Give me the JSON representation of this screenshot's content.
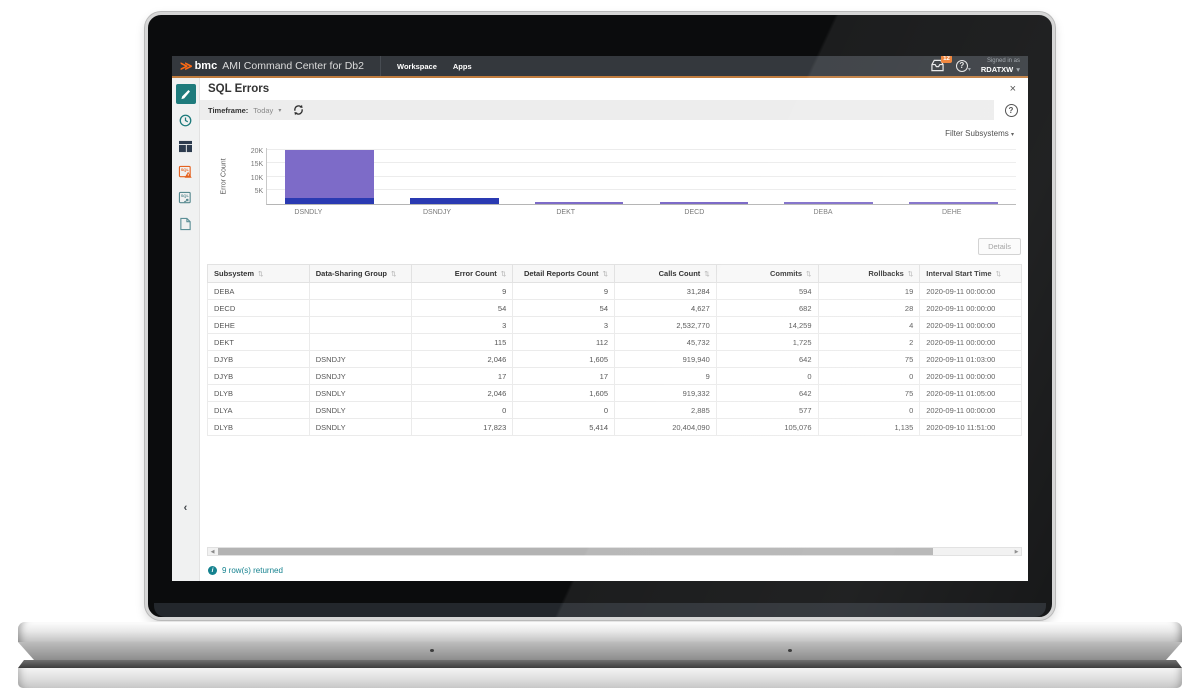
{
  "header": {
    "brand": "bmc",
    "app_title": "AMI Command Center for Db2",
    "nav": [
      "Workspace",
      "Apps"
    ],
    "notification_count": "12",
    "help_glyph": "?",
    "signed_in_label": "Signed in as",
    "username": "RDATXW"
  },
  "page": {
    "title": "SQL Errors",
    "close_glyph": "×",
    "timeframe_label": "Timeframe:",
    "timeframe_value": "Today",
    "filter_label": "Filter Subsystems",
    "details_button": "Details",
    "status_text": "9 row(s) returned",
    "help_glyph": "?"
  },
  "sidebar": {
    "icons": [
      "dashboard-pen-icon",
      "history-clock-icon",
      "workspace-columns-icon",
      "sql-errors-warning-icon",
      "sql-activity-icon",
      "report-document-icon"
    ],
    "collapse_glyph": "‹"
  },
  "chart_data": {
    "type": "bar",
    "stacked": true,
    "title": "",
    "xlabel": "",
    "ylabel": "Error Count",
    "ylim": [
      0,
      21000
    ],
    "grid": true,
    "legend": "none",
    "categories": [
      "DSNDLY",
      "DSNDJY",
      "DEKT",
      "DECD",
      "DEBA",
      "DEHE"
    ],
    "yticks": [
      {
        "label": "5K",
        "value": 5000
      },
      {
        "label": "10K",
        "value": 10000
      },
      {
        "label": "15K",
        "value": 15000
      },
      {
        "label": "20K",
        "value": 20000
      }
    ],
    "series": [
      {
        "name": "lower-segment",
        "color": "#2a3ab2",
        "values": [
          2046,
          2063,
          0,
          0,
          0,
          0
        ]
      },
      {
        "name": "upper-segment",
        "color": "#7d6bc8",
        "values": [
          17823,
          0,
          115,
          54,
          9,
          3
        ]
      }
    ]
  },
  "table": {
    "columns": [
      {
        "label": "Subsystem",
        "align": "left"
      },
      {
        "label": "Data-Sharing Group",
        "align": "left"
      },
      {
        "label": "Error Count",
        "align": "right"
      },
      {
        "label": "Detail Reports Count",
        "align": "right"
      },
      {
        "label": "Calls Count",
        "align": "right"
      },
      {
        "label": "Commits",
        "align": "right"
      },
      {
        "label": "Rollbacks",
        "align": "right"
      },
      {
        "label": "Interval Start Time",
        "align": "left"
      }
    ],
    "sort_glyph": "⇅",
    "rows": [
      [
        "DEBA",
        "",
        "9",
        "9",
        "31,284",
        "594",
        "19",
        "2020-09-11 00:00:00"
      ],
      [
        "DECD",
        "",
        "54",
        "54",
        "4,627",
        "682",
        "28",
        "2020-09-11 00:00:00"
      ],
      [
        "DEHE",
        "",
        "3",
        "3",
        "2,532,770",
        "14,259",
        "4",
        "2020-09-11 00:00:00"
      ],
      [
        "DEKT",
        "",
        "115",
        "112",
        "45,732",
        "1,725",
        "2",
        "2020-09-11 00:00:00"
      ],
      [
        "DJYB",
        "DSNDJY",
        "2,046",
        "1,605",
        "919,940",
        "642",
        "75",
        "2020-09-11 01:03:00"
      ],
      [
        "DJYB",
        "DSNDJY",
        "17",
        "17",
        "9",
        "0",
        "0",
        "2020-09-11 00:00:00"
      ],
      [
        "DLYB",
        "DSNDLY",
        "2,046",
        "1,605",
        "919,332",
        "642",
        "75",
        "2020-09-11 01:05:00"
      ],
      [
        "DLYA",
        "DSNDLY",
        "0",
        "0",
        "2,885",
        "577",
        "0",
        "2020-09-11 00:00:00"
      ],
      [
        "DLYB",
        "DSNDLY",
        "17,823",
        "5,414",
        "20,404,090",
        "105,076",
        "1,135",
        "2020-09-10 11:51:00"
      ]
    ]
  },
  "colors": {
    "header_bg": "#34383d",
    "header_accent": "#c07c3e",
    "brand_orange": "#ff6a13",
    "badge_orange": "#ef7d2e",
    "teal": "#1e7b7c",
    "link_teal": "#15828f",
    "bar_blue": "#2a3ab2",
    "bar_purple": "#7d6bc8"
  }
}
